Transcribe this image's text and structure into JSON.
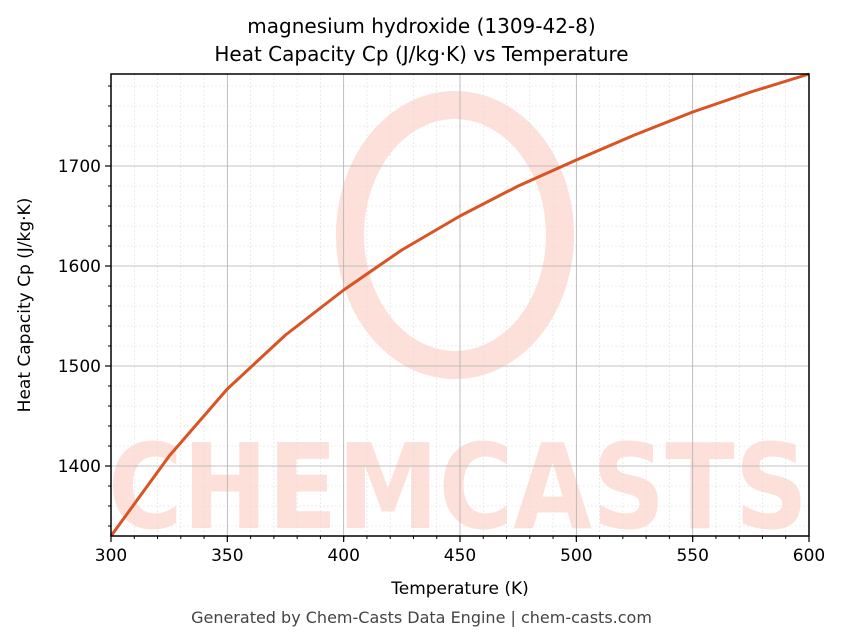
{
  "title_line1": "magnesium hydroxide (1309-42-8)",
  "title_line2": "Heat Capacity Cp (J/kg·K) vs Temperature",
  "footer": "Generated by Chem-Casts Data Engine | chem-casts.com",
  "watermark": "CHEMCASTS",
  "colors": {
    "line": "#d95323",
    "watermark": "#fde0d9",
    "grid_major": "#b0b0b0",
    "grid_minor": "#dddddd"
  },
  "chart_data": {
    "type": "line",
    "title": "magnesium hydroxide (1309-42-8)\nHeat Capacity Cp (J/kg·K) vs Temperature",
    "xlabel": "Temperature (K)",
    "ylabel": "Heat Capacity Cp (J/kg·K)",
    "xlim": [
      300,
      600
    ],
    "ylim": [
      1330,
      1792
    ],
    "xticks": [
      300,
      350,
      400,
      450,
      500,
      550,
      600
    ],
    "yticks": [
      1400,
      1500,
      1600,
      1700
    ],
    "grid": true,
    "series": [
      {
        "name": "Cp",
        "x": [
          300,
          325,
          350,
          375,
          400,
          425,
          450,
          475,
          500,
          525,
          550,
          575,
          600
        ],
        "values": [
          1330,
          1410,
          1477,
          1531,
          1576,
          1616,
          1650,
          1680,
          1706,
          1731,
          1754,
          1774,
          1792
        ]
      }
    ]
  }
}
